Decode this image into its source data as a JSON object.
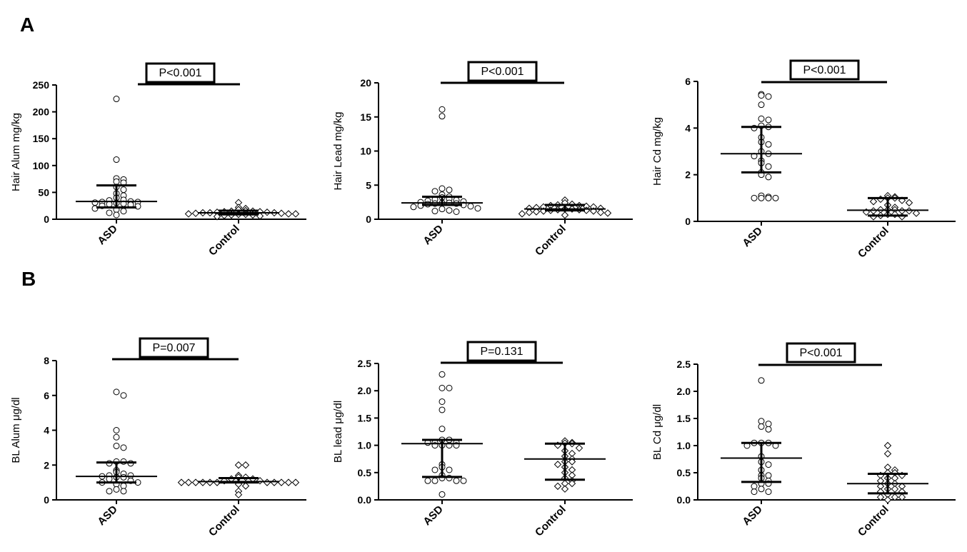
{
  "panels": [
    {
      "label": "A"
    },
    {
      "label": "B"
    }
  ],
  "chart_data": [
    {
      "type": "scatter",
      "panel": "A",
      "ylabel": "Hair Alum mg/kg",
      "categories": [
        "ASD",
        "Control"
      ],
      "ylim": [
        0,
        250
      ],
      "yticks": [
        0,
        50,
        100,
        150,
        200,
        250
      ],
      "ytick_labels": [
        "0",
        "50",
        "100",
        "150",
        "200",
        "250"
      ],
      "pvalue": "P<0.001",
      "series": [
        {
          "category": "ASD",
          "marker": "circle",
          "values": [
            224,
            111,
            76,
            74,
            70,
            68,
            60,
            55,
            48,
            44,
            40,
            36,
            35,
            33,
            32,
            32,
            31,
            30,
            29,
            28,
            27,
            25,
            24,
            20,
            18,
            15,
            12,
            8
          ],
          "median": 33,
          "q1": 22,
          "q3": 63
        },
        {
          "category": "Control",
          "marker": "diamond",
          "values": [
            31,
            22,
            20,
            18,
            16,
            15,
            15,
            14,
            14,
            13,
            13,
            12,
            12,
            12,
            11,
            11,
            10,
            10,
            10,
            9,
            9,
            8,
            8,
            7,
            6,
            5
          ],
          "median": 12,
          "q1": 9,
          "q3": 16
        }
      ]
    },
    {
      "type": "scatter",
      "panel": "A",
      "ylabel": "Hair Lead mg/kg",
      "categories": [
        "ASD",
        "Control"
      ],
      "ylim": [
        0,
        20
      ],
      "yticks": [
        0,
        5,
        10,
        15,
        20
      ],
      "ytick_labels": [
        "0",
        "5",
        "10",
        "15",
        "20"
      ],
      "pvalue": "P<0.001",
      "series": [
        {
          "category": "ASD",
          "marker": "circle",
          "values": [
            16.1,
            15.1,
            4.5,
            4.3,
            4.1,
            3.6,
            3.3,
            3.2,
            3.0,
            2.9,
            2.8,
            2.7,
            2.6,
            2.5,
            2.4,
            2.4,
            2.3,
            2.3,
            2.2,
            2.1,
            2.0,
            1.9,
            1.8,
            1.6,
            1.5,
            1.3,
            1.2,
            1.1
          ],
          "median": 2.4,
          "q1": 2.1,
          "q3": 3.3
        },
        {
          "category": "Control",
          "marker": "diamond",
          "values": [
            2.8,
            2.4,
            2.2,
            2.1,
            2.0,
            2.0,
            1.9,
            1.8,
            1.8,
            1.7,
            1.6,
            1.6,
            1.5,
            1.5,
            1.4,
            1.4,
            1.3,
            1.3,
            1.2,
            1.2,
            1.1,
            1.0,
            1.0,
            0.9,
            0.8,
            0.6
          ],
          "median": 1.5,
          "q1": 1.3,
          "q3": 2.1
        }
      ]
    },
    {
      "type": "scatter",
      "panel": "A",
      "ylabel": "Hair Cd mg/kg",
      "categories": [
        "ASD",
        "Control"
      ],
      "ylim": [
        0,
        6
      ],
      "yticks": [
        0,
        2,
        4,
        6
      ],
      "ytick_labels": [
        "0",
        "2",
        "4",
        "6"
      ],
      "pvalue": "P<0.001",
      "series": [
        {
          "category": "ASD",
          "marker": "circle",
          "values": [
            5.45,
            5.4,
            5.35,
            5.0,
            4.4,
            4.35,
            4.1,
            4.05,
            4.0,
            3.6,
            3.4,
            3.3,
            3.0,
            2.9,
            2.8,
            2.6,
            2.5,
            2.35,
            2.1,
            2.0,
            1.9,
            1.1,
            1.05,
            1.0,
            1.0,
            1.0,
            1.0
          ],
          "median": 2.9,
          "q1": 2.1,
          "q3": 4.05
        },
        {
          "category": "Control",
          "marker": "diamond",
          "values": [
            1.1,
            1.05,
            1.0,
            1.0,
            0.95,
            0.9,
            0.85,
            0.8,
            0.7,
            0.6,
            0.5,
            0.5,
            0.5,
            0.45,
            0.45,
            0.45,
            0.4,
            0.35,
            0.3,
            0.3,
            0.25,
            0.2,
            0.2
          ],
          "median": 0.48,
          "q1": 0.25,
          "q3": 1.0
        }
      ]
    },
    {
      "type": "scatter",
      "panel": "B",
      "ylabel": "BL Alum μg/dl",
      "categories": [
        "ASD",
        "Control"
      ],
      "ylim": [
        0,
        8
      ],
      "yticks": [
        0,
        2,
        4,
        6,
        8
      ],
      "ytick_labels": [
        "0",
        "2",
        "4",
        "6",
        "8"
      ],
      "pvalue": "P=0.007",
      "series": [
        {
          "category": "ASD",
          "marker": "circle",
          "values": [
            6.2,
            6.0,
            4.0,
            3.6,
            3.1,
            3.0,
            2.2,
            2.2,
            2.1,
            2.1,
            1.7,
            1.6,
            1.5,
            1.4,
            1.4,
            1.35,
            1.3,
            1.3,
            1.2,
            1.1,
            1.0,
            1.0,
            0.9,
            0.8,
            0.6,
            0.5,
            0.5
          ],
          "median": 1.35,
          "q1": 1.0,
          "q3": 2.15
        },
        {
          "category": "Control",
          "marker": "diamond",
          "values": [
            2.0,
            2.0,
            1.4,
            1.3,
            1.3,
            1.2,
            1.2,
            1.1,
            1.1,
            1.0,
            1.0,
            1.0,
            1.0,
            1.0,
            1.0,
            1.0,
            1.0,
            1.0,
            1.0,
            1.0,
            0.9,
            0.8,
            0.5,
            0.3
          ],
          "median": 1.05,
          "q1": 1.0,
          "q3": 1.25
        }
      ]
    },
    {
      "type": "scatter",
      "panel": "B",
      "ylabel": "BL lead  μg/dl",
      "categories": [
        "ASD",
        "Control"
      ],
      "ylim": [
        0,
        2.5
      ],
      "yticks": [
        0.0,
        0.5,
        1.0,
        1.5,
        2.0,
        2.5
      ],
      "ytick_labels": [
        "0.0",
        "0.5",
        "1.0",
        "1.5",
        "2.0",
        "2.5"
      ],
      "pvalue": "P=0.131",
      "series": [
        {
          "category": "ASD",
          "marker": "circle",
          "values": [
            2.3,
            2.05,
            2.05,
            1.8,
            1.65,
            1.3,
            1.1,
            1.1,
            1.05,
            1.05,
            1.05,
            1.0,
            1.0,
            1.0,
            1.0,
            0.65,
            0.6,
            0.55,
            0.55,
            0.45,
            0.4,
            0.4,
            0.35,
            0.35,
            0.35,
            0.35,
            0.1
          ],
          "median": 1.03,
          "q1": 0.42,
          "q3": 1.1
        },
        {
          "category": "Control",
          "marker": "diamond",
          "values": [
            1.08,
            1.05,
            1.04,
            1.03,
            1.0,
            0.95,
            0.9,
            0.85,
            0.8,
            0.75,
            0.7,
            0.7,
            0.65,
            0.6,
            0.55,
            0.5,
            0.45,
            0.4,
            0.35,
            0.3,
            0.3,
            0.25,
            0.2
          ],
          "median": 0.75,
          "q1": 0.37,
          "q3": 1.03
        }
      ]
    },
    {
      "type": "scatter",
      "panel": "B",
      "ylabel": "BL Cd  μg/dl",
      "categories": [
        "ASD",
        "Control"
      ],
      "ylim": [
        0,
        2.5
      ],
      "yticks": [
        0.0,
        0.5,
        1.0,
        1.5,
        2.0,
        2.5
      ],
      "ytick_labels": [
        "0.0",
        "0.5",
        "1.0",
        "1.5",
        "2.0",
        "2.5"
      ],
      "pvalue": "P<0.001",
      "series": [
        {
          "category": "ASD",
          "marker": "circle",
          "values": [
            2.2,
            1.45,
            1.4,
            1.35,
            1.3,
            1.05,
            1.05,
            1.05,
            1.0,
            1.0,
            0.8,
            0.7,
            0.65,
            0.55,
            0.45,
            0.45,
            0.4,
            0.35,
            0.3,
            0.3,
            0.25,
            0.2,
            0.15,
            0.15
          ],
          "median": 0.77,
          "q1": 0.33,
          "q3": 1.05
        },
        {
          "category": "Control",
          "marker": "diamond",
          "values": [
            1.0,
            0.85,
            0.6,
            0.55,
            0.5,
            0.5,
            0.45,
            0.45,
            0.4,
            0.4,
            0.35,
            0.3,
            0.3,
            0.25,
            0.25,
            0.2,
            0.2,
            0.15,
            0.15,
            0.1,
            0.05,
            0.05,
            0.05,
            0.0
          ],
          "median": 0.3,
          "q1": 0.12,
          "q3": 0.48
        }
      ]
    }
  ]
}
